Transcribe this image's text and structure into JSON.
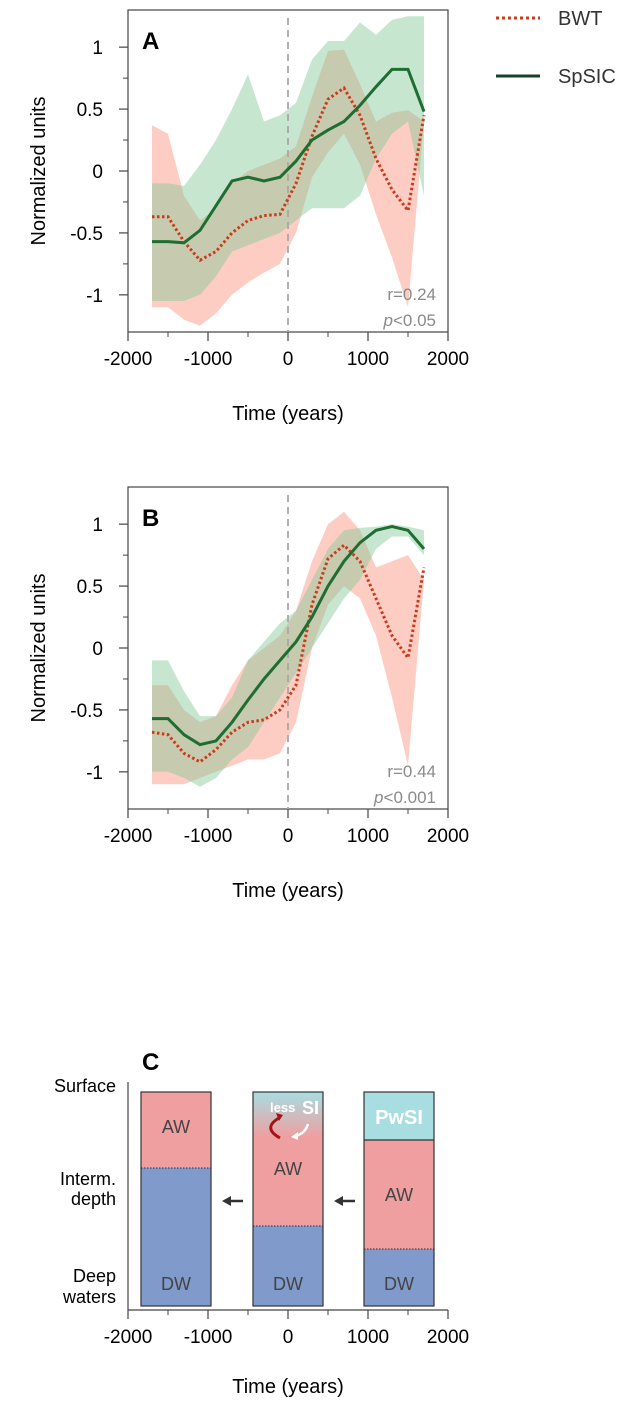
{
  "legend": {
    "items": [
      {
        "label": "BWT",
        "color": "#cc3a1a",
        "style": "dotted"
      },
      {
        "label": "SpSIC",
        "color": "#1a6b36",
        "style": "solid"
      }
    ]
  },
  "chart_data": [
    {
      "panel": "A",
      "type": "line",
      "xlabel": "Time (years)",
      "ylabel": "Normalized units",
      "xlim": [
        -2000,
        2000
      ],
      "ylim": [
        -1.3,
        1.3
      ],
      "xticks": [
        "-2000",
        "-1000",
        "0",
        "1000",
        "2000"
      ],
      "yticks": [
        "1",
        "0.5",
        "0",
        "-0.5",
        "-1"
      ],
      "vline_x": 0,
      "annotation": {
        "r": "r=0.24",
        "p_italic": "p",
        "p_rest": "<0.05"
      },
      "x": [
        -1700,
        -1500,
        -1300,
        -1100,
        -900,
        -700,
        -500,
        -300,
        -100,
        100,
        300,
        500,
        700,
        900,
        1100,
        1300,
        1500,
        1700
      ],
      "series": [
        {
          "name": "BWT",
          "values": [
            -0.37,
            -0.37,
            -0.57,
            -0.72,
            -0.65,
            -0.5,
            -0.4,
            -0.36,
            -0.35,
            -0.1,
            0.28,
            0.58,
            0.67,
            0.45,
            0.1,
            -0.15,
            -0.32,
            0.45
          ],
          "band_upper": [
            0.37,
            0.3,
            -0.2,
            -0.4,
            -0.3,
            -0.1,
            0.0,
            0.05,
            0.1,
            0.2,
            0.6,
            0.97,
            0.98,
            0.7,
            0.4,
            0.47,
            0.49,
            0.4
          ],
          "band_lower": [
            -1.1,
            -1.1,
            -1.2,
            -1.25,
            -1.15,
            -1.0,
            -0.9,
            -0.82,
            -0.75,
            -0.5,
            -0.05,
            0.15,
            0.3,
            0.05,
            -0.35,
            -0.7,
            -1.1,
            0.4
          ]
        },
        {
          "name": "SpSIC",
          "values": [
            -0.57,
            -0.57,
            -0.58,
            -0.48,
            -0.28,
            -0.08,
            -0.05,
            -0.08,
            -0.05,
            0.08,
            0.25,
            0.33,
            0.4,
            0.53,
            0.68,
            0.82,
            0.82,
            0.48
          ],
          "band_upper": [
            -0.1,
            -0.1,
            -0.12,
            0.05,
            0.25,
            0.5,
            0.78,
            0.4,
            0.45,
            0.55,
            0.9,
            1.05,
            1.05,
            1.2,
            1.1,
            1.22,
            1.25,
            1.25
          ],
          "band_lower": [
            -1.05,
            -1.05,
            -1.05,
            -1.0,
            -0.85,
            -0.65,
            -0.6,
            -0.55,
            -0.5,
            -0.4,
            -0.3,
            -0.3,
            -0.3,
            -0.2,
            0.1,
            0.3,
            0.4,
            -0.2
          ]
        }
      ]
    },
    {
      "panel": "B",
      "type": "line",
      "xlabel": "Time (years)",
      "ylabel": "Normalized units",
      "xlim": [
        -2000,
        2000
      ],
      "ylim": [
        -1.3,
        1.3
      ],
      "xticks": [
        "-2000",
        "-1000",
        "0",
        "1000",
        "2000"
      ],
      "yticks": [
        "1",
        "0.5",
        "0",
        "-0.5",
        "-1"
      ],
      "vline_x": 0,
      "annotation": {
        "r": "r=0.44",
        "p_italic": "p",
        "p_rest": "<0.001"
      },
      "x": [
        -1700,
        -1500,
        -1300,
        -1100,
        -900,
        -700,
        -500,
        -300,
        -100,
        100,
        300,
        500,
        700,
        900,
        1100,
        1300,
        1500,
        1700
      ],
      "series": [
        {
          "name": "BWT",
          "values": [
            -0.68,
            -0.7,
            -0.85,
            -0.92,
            -0.82,
            -0.68,
            -0.6,
            -0.58,
            -0.5,
            -0.3,
            0.35,
            0.72,
            0.83,
            0.7,
            0.4,
            0.1,
            -0.08,
            0.65
          ],
          "band_upper": [
            -0.3,
            -0.3,
            -0.5,
            -0.6,
            -0.55,
            -0.3,
            -0.1,
            0.0,
            0.1,
            0.3,
            0.7,
            1.0,
            1.1,
            0.95,
            0.65,
            0.7,
            0.75,
            0.55
          ],
          "band_lower": [
            -1.1,
            -1.1,
            -1.1,
            -1.05,
            -1.0,
            -0.95,
            -0.9,
            -0.9,
            -0.85,
            -0.6,
            0.0,
            0.35,
            0.5,
            0.4,
            0.1,
            -0.4,
            -0.95,
            0.55
          ]
        },
        {
          "name": "SpSIC",
          "values": [
            -0.57,
            -0.57,
            -0.7,
            -0.78,
            -0.75,
            -0.6,
            -0.42,
            -0.25,
            -0.1,
            0.05,
            0.25,
            0.5,
            0.7,
            0.85,
            0.95,
            0.98,
            0.95,
            0.8
          ],
          "band_upper": [
            -0.1,
            -0.1,
            -0.35,
            -0.55,
            -0.55,
            -0.4,
            -0.1,
            0.05,
            0.2,
            0.3,
            0.55,
            0.8,
            0.95,
            0.97,
            0.98,
            1.0,
            0.98,
            0.95
          ],
          "band_lower": [
            -1.0,
            -1.0,
            -1.05,
            -1.12,
            -1.05,
            -0.9,
            -0.8,
            -0.6,
            -0.4,
            -0.2,
            0.0,
            0.2,
            0.4,
            0.55,
            0.8,
            0.9,
            0.9,
            0.75
          ]
        }
      ]
    }
  ],
  "panel_c": {
    "label": "C",
    "xlabel": "Time (years)",
    "xticks": [
      "-2000",
      "-1000",
      "0",
      "1000",
      "2000"
    ],
    "depth_labels": [
      {
        "lines": [
          "Surface"
        ]
      },
      {
        "lines": [
          "Interm.",
          "depth"
        ]
      },
      {
        "lines": [
          "Deep",
          "waters"
        ]
      }
    ],
    "column_1": {
      "aw_label": "AW",
      "dw_label": "DW"
    },
    "column_2": {
      "aw_label": "AW",
      "dw_label": "DW",
      "less_label": "less",
      "si_label": "SI"
    },
    "column_3": {
      "pwsi_label": "PwSI",
      "aw_label": "AW",
      "dw_label": "DW"
    },
    "colors": {
      "aw": "#ef9fa0",
      "dw": "#7f9acb",
      "pwsi": "#a8dde2"
    }
  }
}
